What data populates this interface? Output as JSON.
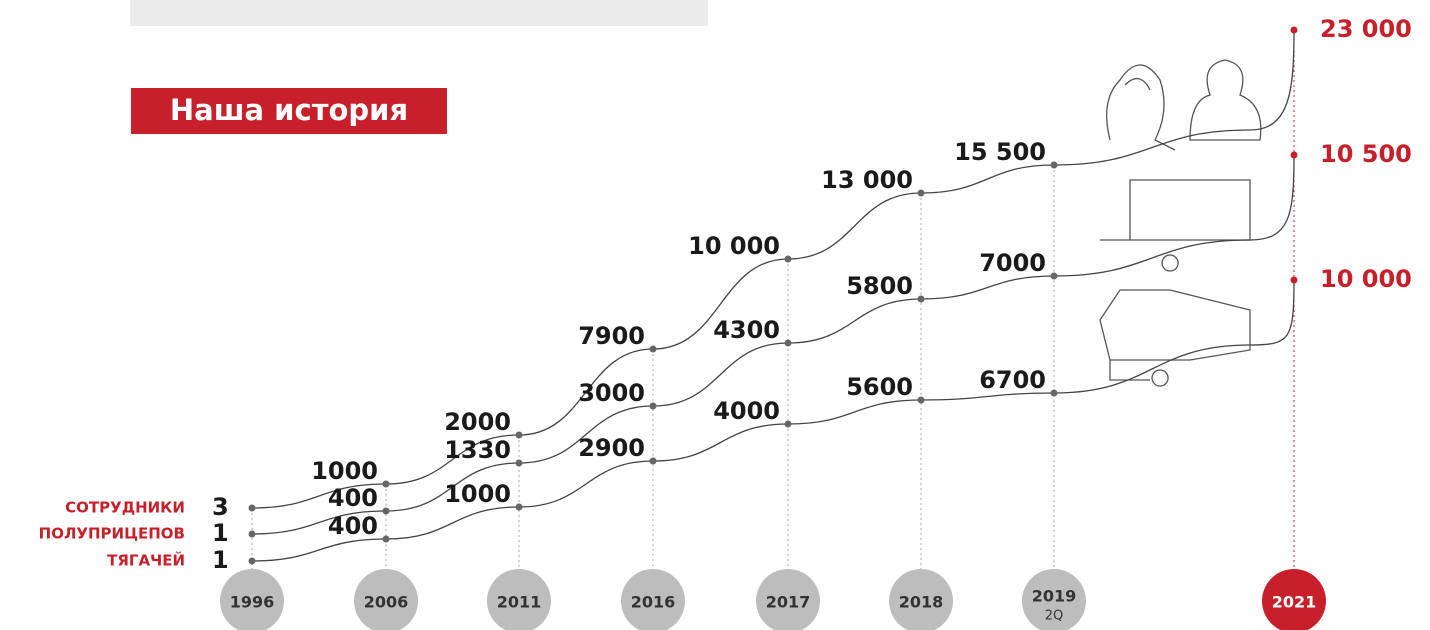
{
  "header": {
    "title": "Наша история"
  },
  "years": [
    {
      "label": "1996"
    },
    {
      "label": "2006"
    },
    {
      "label": "2011"
    },
    {
      "label": "2016"
    },
    {
      "label": "2017"
    },
    {
      "label": "2018"
    },
    {
      "label": "2019",
      "sub": "2Q"
    },
    {
      "label": "2021"
    }
  ],
  "series": [
    {
      "label": "СОТРУДНИКИ",
      "values": [
        "3",
        "1000",
        "2000",
        "7900",
        "10 000",
        "13 000",
        "15 500",
        "23 000"
      ]
    },
    {
      "label": "ПОЛУПРИЦЕПОВ",
      "values": [
        "1",
        "400",
        "1330",
        "3000",
        "4300",
        "5800",
        "7000",
        "10 500"
      ]
    },
    {
      "label": "ТЯГАЧЕЙ",
      "values": [
        "1",
        "400",
        "1000",
        "2900",
        "4000",
        "5600",
        "6700",
        "10 000"
      ]
    }
  ]
}
